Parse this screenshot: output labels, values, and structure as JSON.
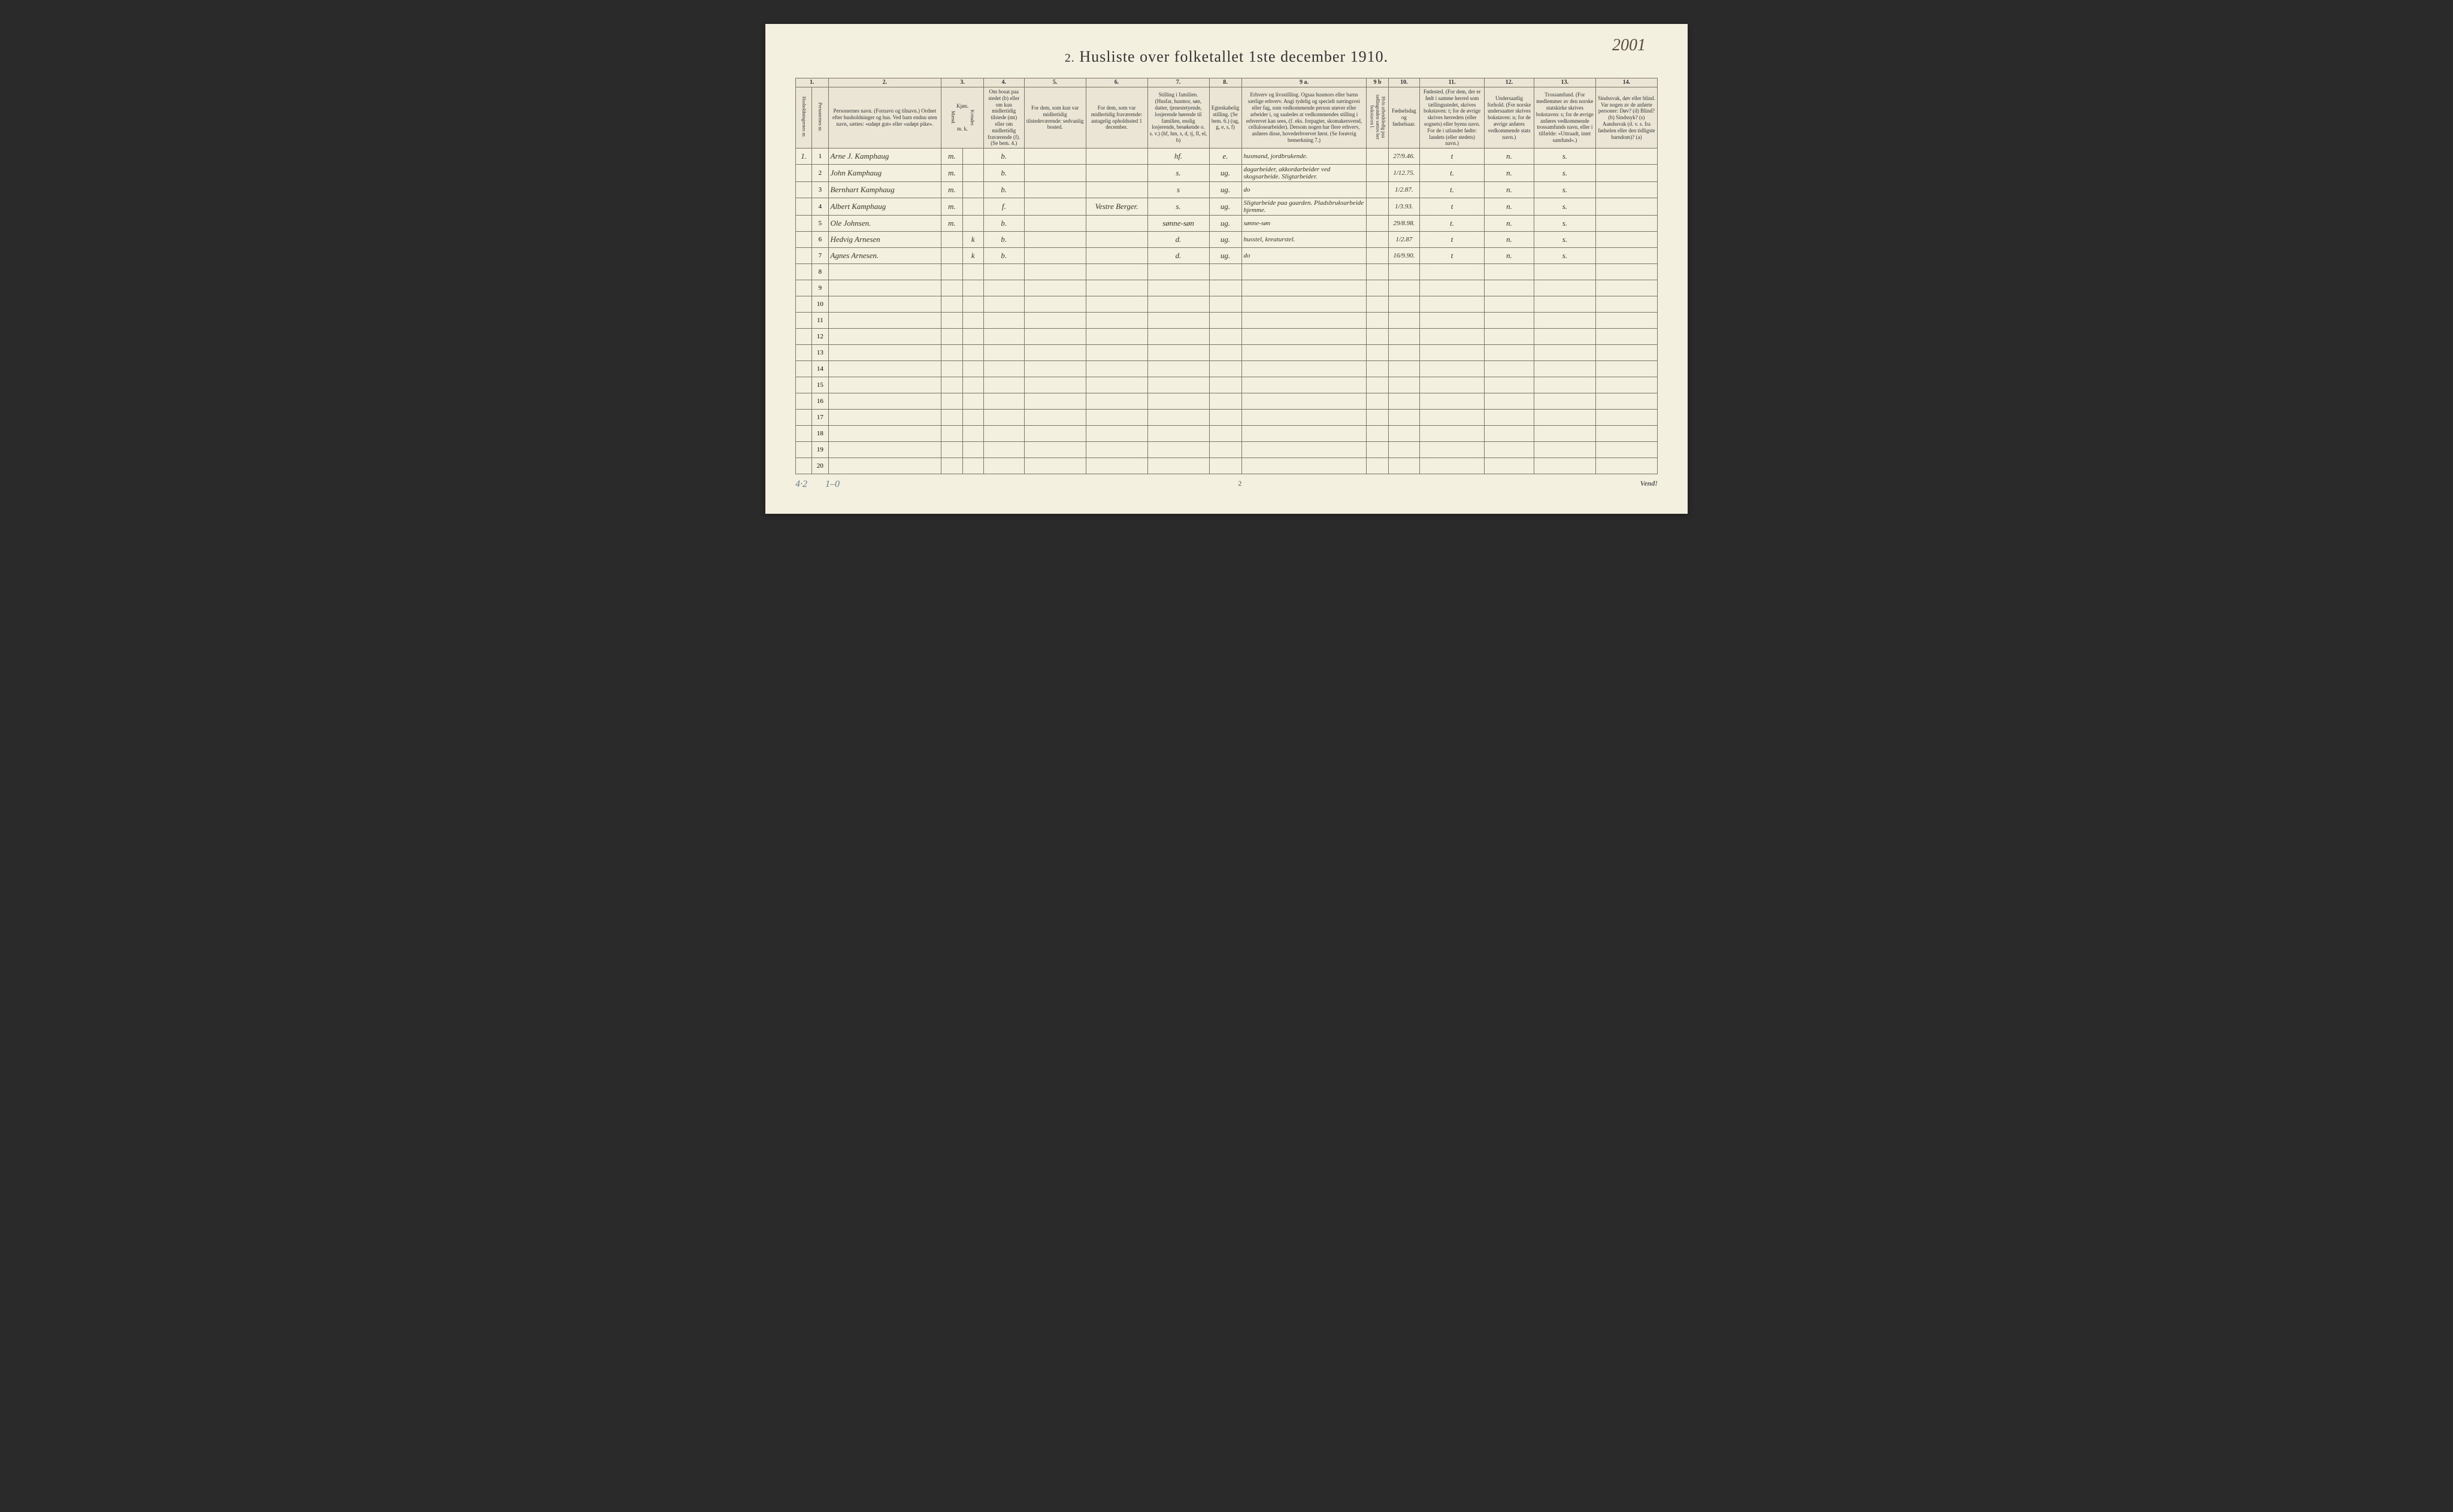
{
  "page_number_handwritten": "2001",
  "title_prefix": "2.",
  "title": "Husliste over folketallet 1ste december 1910.",
  "col_numbers": [
    "1.",
    "",
    "2.",
    "3.",
    "4.",
    "5.",
    "6.",
    "7.",
    "8.",
    "9 a.",
    "9 b",
    "10.",
    "11.",
    "12.",
    "13.",
    "14."
  ],
  "headers": {
    "c1": "Husholdningernes nr.",
    "c1b": "Personernes nr.",
    "c2": "Personernes navn.\n(Fornavn og tilnavn.)\nOrdnet efter husholdninger og hus.\nVed barn endnu uten navn, sættes: «udøpt gut» eller «udøpt pike».",
    "c3_top": "Kjøn.",
    "c3_m": "Mænd.",
    "c3_k": "Kvinder.",
    "c3_bot": "m. k.",
    "c4": "Om bosat paa stedet (b) eller om kun midlertidig tilstede (mt) eller om midlertidig fraværende (f).\n(Se bem. 4.)",
    "c5": "For dem, som kun var midlertidig tilstedeværende:\nsedvanlig bosted.",
    "c6": "For dem, som var midlertidig fraværende:\nantagelig opholdssted 1 december.",
    "c7": "Stilling i familien.\n(Husfar, husmor, søn, datter, tjenestetyende, losjerende hørende til familien, enslig losjerende, besøkende o. s. v.)\n(hf, hm, s, d, tj, fl, el, b)",
    "c8": "Egteskabelig stilling.\n(Se bem. 6.)\n(ug, g, e, s, f)",
    "c9a": "Erhverv og livsstilling.\nOgsaa husmors eller barns særlige erhverv.\nAngi tydelig og specielt næringsvei eller fag, som vedkommende person utøver eller arbeider i, og saaledes at vedkommendes stilling i erhvervet kan sees, (f. eks. forpagter, skomakersvend, cellulosearbeider). Dersom nogen har flere erhverv, anføres disse, hovederhvervet først.\n(Se forøvrig bemerkning 7.)",
    "c9b": "Hvis arbeidsledig paa tællingstiden sættes her bokstaven l.",
    "c10": "Fødselsdag og fødselsaar.",
    "c11": "Fødested.\n(For dem, der er født i samme herred som tællingsstedet, skrives bokstaven: t; for de øvrige skrives herredets (eller sognets) eller byens navn. For de i utlandet fødte: landets (eller stedets) navn.)",
    "c12": "Undersaatlig forhold.\n(For norske undersaatter skrives bokstaven: n; for de øvrige anføres vedkommende stats navn.)",
    "c13": "Trossamfund.\n(For medlemmer av den norske statskirke skrives bokstaven: s; for de øvrige anføres vedkommende trossamfunds navn, eller i tilfælde: «Uttraadt, intet samfund».)",
    "c14": "Sindssvak, døv eller blind.\nVar nogen av de anførte personer:\nDøv? (d)\nBlind? (b)\nSindssyk? (s)\nAandssvak (d. v. s. fra fødselen eller den tidligste barndom)? (a)"
  },
  "rows": [
    {
      "hh": "1.",
      "n": "1",
      "name": "Arne J. Kamphaug",
      "sex": "m",
      "res": "b.",
      "usual": "",
      "away": "",
      "rel": "hf.",
      "mar": "e.",
      "occ": "husmand, jordbrukende.",
      "unemp": "",
      "dob": "27/9.46.",
      "birth": "t",
      "nat": "n.",
      "rel2": "s.",
      "dis": ""
    },
    {
      "hh": "",
      "n": "2",
      "name": "John Kamphaug",
      "sex": "m",
      "res": "b.",
      "usual": "",
      "away": "",
      "rel": "s.",
      "mar": "ug.",
      "occ": "dagarbeider, akkordarbeider ved skogsarbeide. Sligtarbeider.",
      "unemp": "",
      "dob": "1/12.75.",
      "birth": "t.",
      "nat": "n.",
      "rel2": "s.",
      "dis": ""
    },
    {
      "hh": "",
      "n": "3",
      "name": "Bernhart Kamphaug",
      "sex": "m",
      "res": "b.",
      "usual": "",
      "away": "",
      "rel": "s",
      "mar": "ug.",
      "occ": "do",
      "unemp": "",
      "dob": "1/2.87.",
      "birth": "t.",
      "nat": "n.",
      "rel2": "s.",
      "dis": ""
    },
    {
      "hh": "",
      "n": "4",
      "name": "Albert Kamphaug",
      "sex": "m",
      "res": "f.",
      "usual": "",
      "away": "Vestre Berger.",
      "rel": "s.",
      "mar": "ug.",
      "occ": "Sligtarbeide paa gaarden. Pladsbruksarbeide hjemme.",
      "unemp": "",
      "dob": "1/3.93.",
      "birth": "t",
      "nat": "n.",
      "rel2": "s.",
      "dis": ""
    },
    {
      "hh": "",
      "n": "5",
      "name": "Ole Johnsen.",
      "sex": "m",
      "res": "b.",
      "usual": "",
      "away": "",
      "rel": "sønne-søn",
      "mar": "ug.",
      "occ": "sønne-søn",
      "unemp": "",
      "dob": "29/8.98.",
      "birth": "t.",
      "nat": "n.",
      "rel2": "s.",
      "dis": ""
    },
    {
      "hh": "",
      "n": "6",
      "name": "Hedvig Arnesen",
      "sex": "k",
      "res": "b.",
      "usual": "",
      "away": "",
      "rel": "d.",
      "mar": "ug.",
      "occ": "husstel, kreaturstel.",
      "unemp": "",
      "dob": "1/2.87",
      "birth": "t",
      "nat": "n.",
      "rel2": "s.",
      "dis": ""
    },
    {
      "hh": "",
      "n": "7",
      "name": "Agnes Arnesen.",
      "sex": "k",
      "res": "b.",
      "usual": "",
      "away": "",
      "rel": "d.",
      "mar": "ug.",
      "occ": "do",
      "unemp": "",
      "dob": "16/9.90.",
      "birth": "t",
      "nat": "n.",
      "rel2": "s.",
      "dis": ""
    }
  ],
  "empty_rows": [
    8,
    9,
    10,
    11,
    12,
    13,
    14,
    15,
    16,
    17,
    18,
    19,
    20
  ],
  "footer_left1": "4·2",
  "footer_left2": "1–0",
  "footer_center": "2",
  "footer_right": "Vend!"
}
